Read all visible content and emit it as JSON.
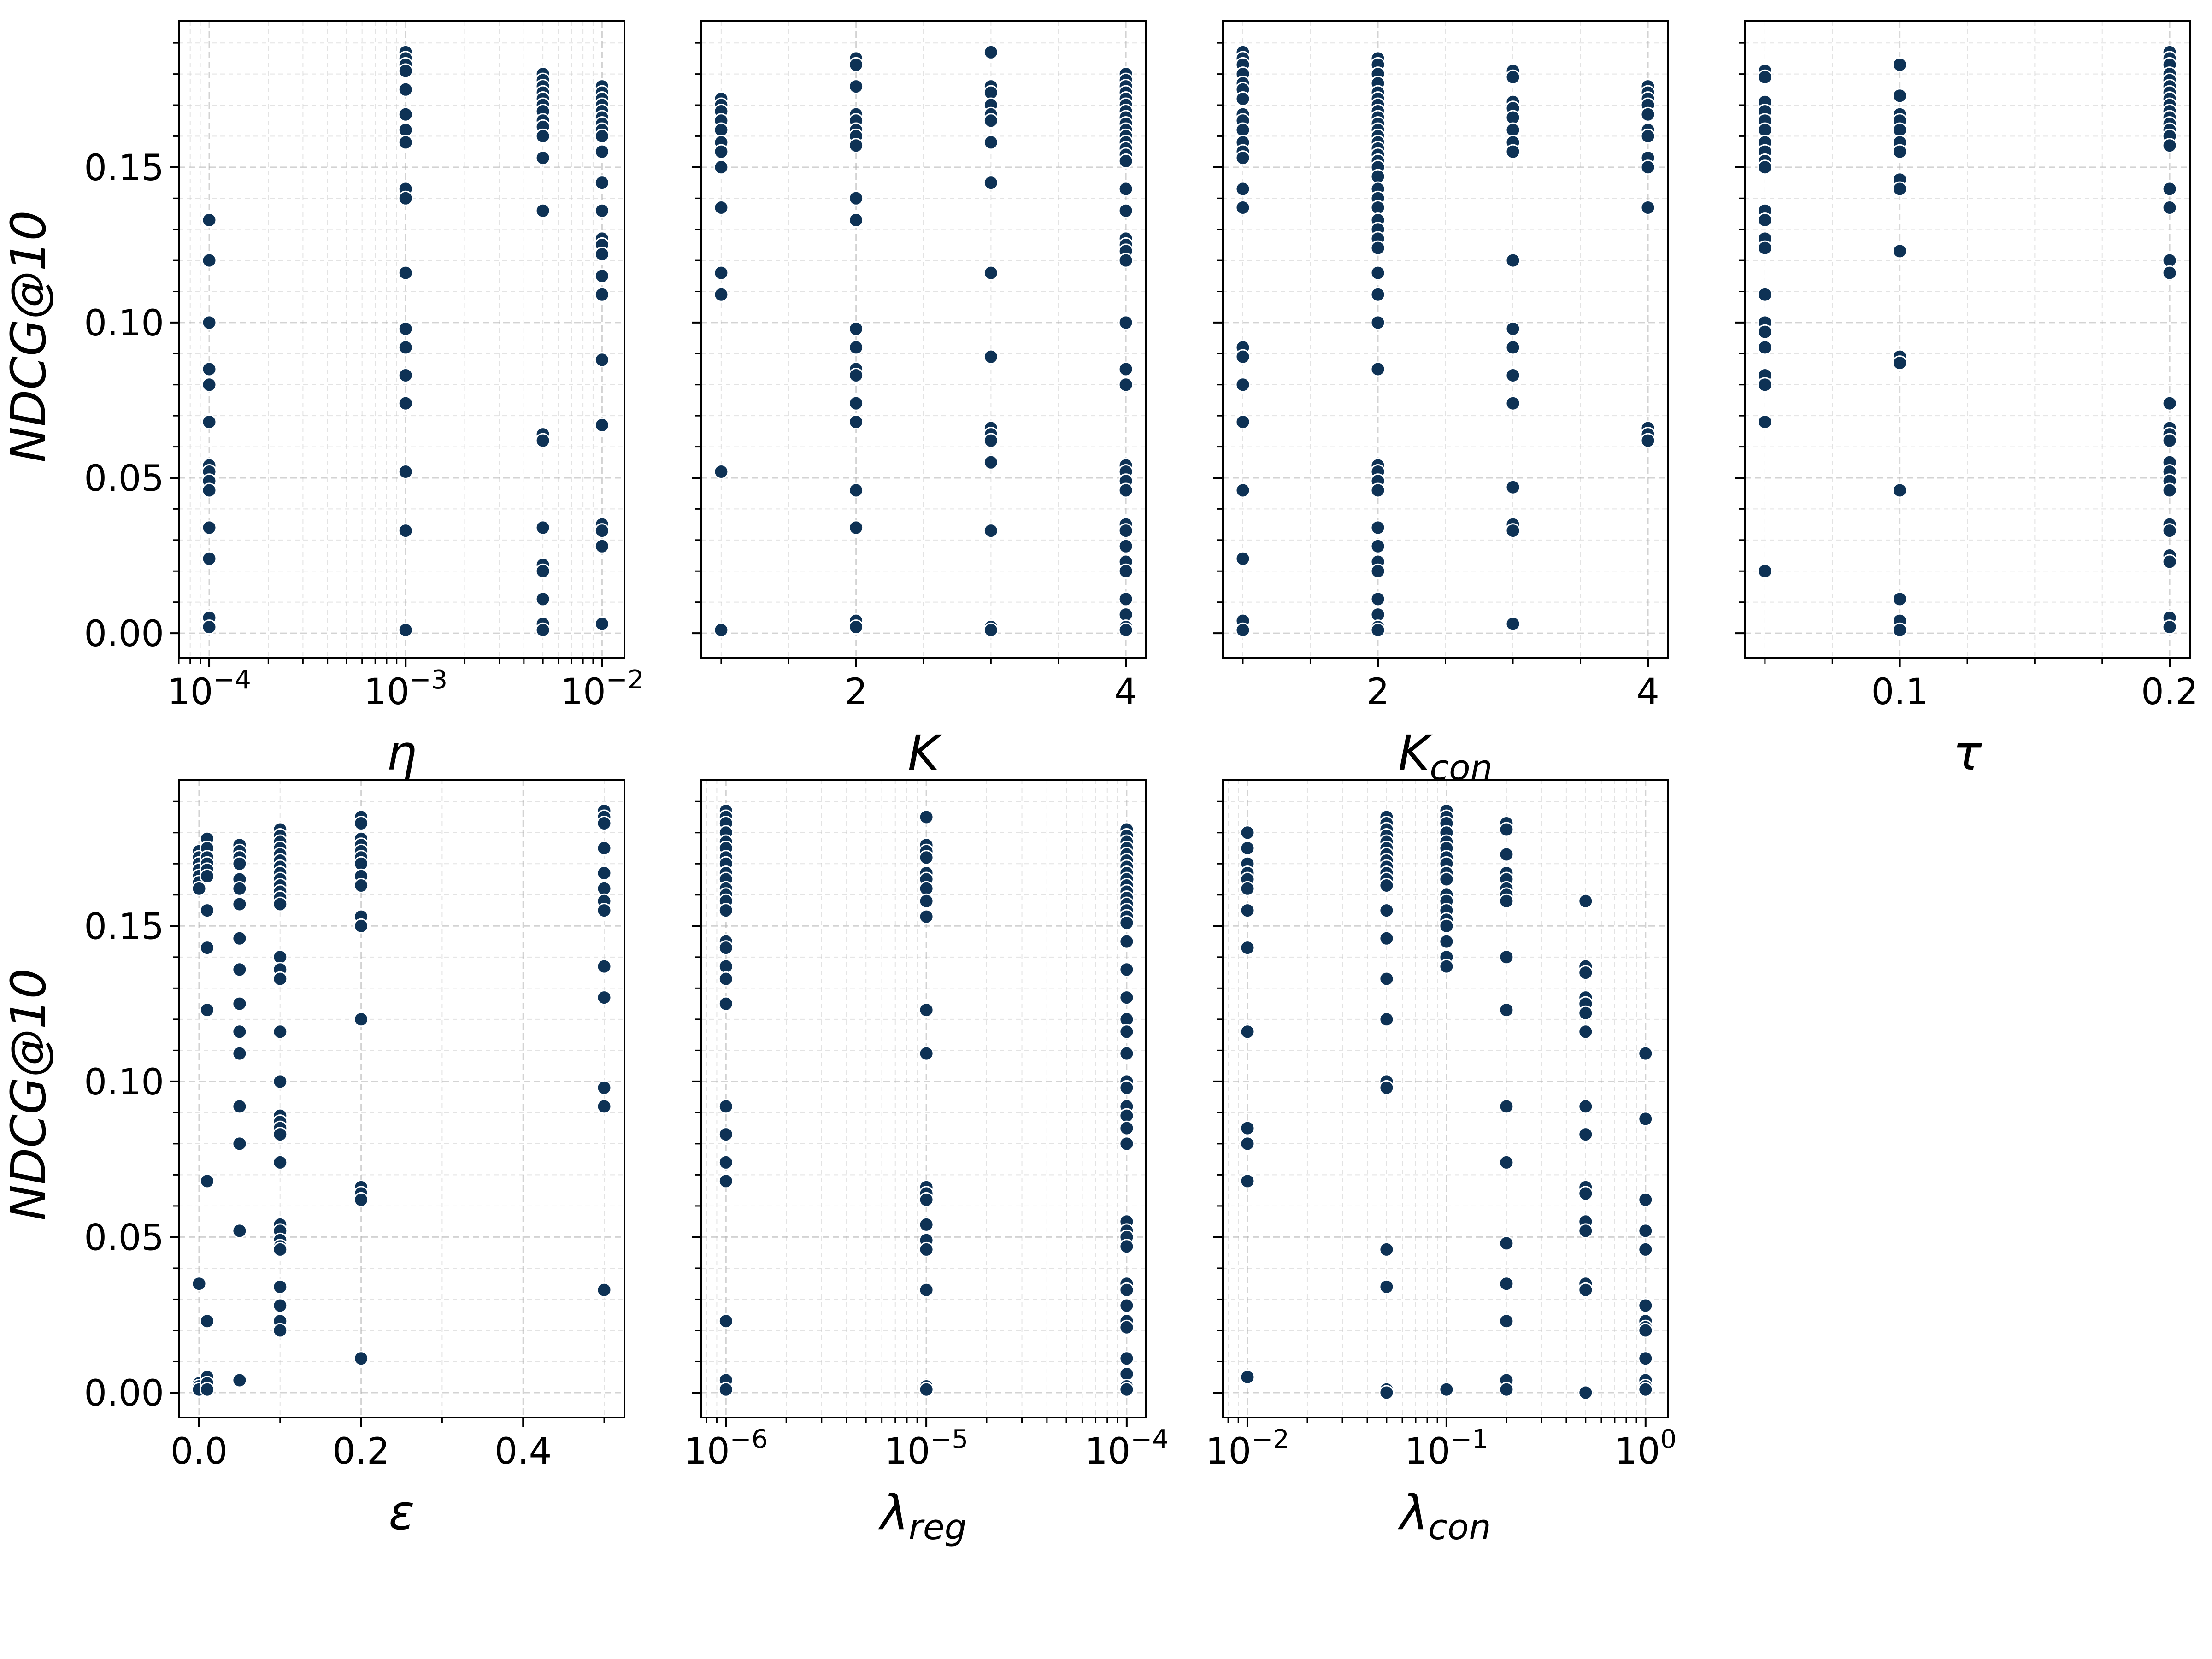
{
  "figure": {
    "ylabel": "NDCG@10",
    "point_color": "#0e3255",
    "point_edge_color": "#ffffff"
  },
  "chart_data": [
    {
      "type": "scatter",
      "id": "eta",
      "xlabel": "η",
      "xlabel_sub": "",
      "xscale": "log",
      "xlim": [
        7e-05,
        0.013
      ],
      "xticks": [
        0.0001,
        0.001,
        0.01
      ],
      "xtick_labels": [
        {
          "base": "10",
          "exp": "−4"
        },
        {
          "base": "10",
          "exp": "−3"
        },
        {
          "base": "10",
          "exp": "−2"
        }
      ],
      "ylim": [
        -0.008,
        0.197
      ],
      "yticks": [
        0.0,
        0.05,
        0.1,
        0.15
      ],
      "ytick_labels": [
        "0.00",
        "0.05",
        "0.10",
        "0.15"
      ],
      "points": [
        {
          "x": 0.0001,
          "y": [
            0.133,
            0.12,
            0.1,
            0.085,
            0.08,
            0.068,
            0.054,
            0.052,
            0.049,
            0.046,
            0.034,
            0.024,
            0.005,
            0.002
          ]
        },
        {
          "x": 0.001,
          "y": [
            0.187,
            0.185,
            0.183,
            0.181,
            0.175,
            0.167,
            0.162,
            0.158,
            0.143,
            0.14,
            0.116,
            0.098,
            0.092,
            0.083,
            0.074,
            0.052,
            0.033,
            0.001
          ]
        },
        {
          "x": 0.005,
          "y": [
            0.18,
            0.178,
            0.176,
            0.174,
            0.172,
            0.17,
            0.168,
            0.165,
            0.163,
            0.16,
            0.153,
            0.136,
            0.064,
            0.062,
            0.034,
            0.022,
            0.02,
            0.011,
            0.003,
            0.001
          ]
        },
        {
          "x": 0.01,
          "y": [
            0.176,
            0.174,
            0.172,
            0.17,
            0.168,
            0.166,
            0.164,
            0.162,
            0.16,
            0.155,
            0.145,
            0.136,
            0.127,
            0.125,
            0.122,
            0.115,
            0.109,
            0.088,
            0.067,
            0.035,
            0.033,
            0.028,
            0.003
          ]
        }
      ]
    },
    {
      "type": "scatter",
      "id": "K",
      "xlabel": "K",
      "xlabel_sub": "",
      "xscale": "linear",
      "xlim": [
        0.85,
        4.15
      ],
      "xticks": [
        2,
        4
      ],
      "xtick_labels": [
        "2",
        "4"
      ],
      "minor_ticks": [
        1.0,
        1.5,
        2.5,
        3.0,
        3.5
      ],
      "ylim": [
        -0.008,
        0.197
      ],
      "yticks": [
        0.0,
        0.05,
        0.1,
        0.15
      ],
      "points": [
        {
          "x": 1,
          "y": [
            0.172,
            0.17,
            0.168,
            0.165,
            0.162,
            0.158,
            0.155,
            0.15,
            0.137,
            0.116,
            0.109,
            0.052,
            0.001
          ]
        },
        {
          "x": 2,
          "y": [
            0.185,
            0.183,
            0.176,
            0.167,
            0.165,
            0.162,
            0.16,
            0.157,
            0.14,
            0.133,
            0.098,
            0.092,
            0.085,
            0.083,
            0.074,
            0.068,
            0.046,
            0.034,
            0.004,
            0.002
          ]
        },
        {
          "x": 3,
          "y": [
            0.187,
            0.176,
            0.174,
            0.17,
            0.167,
            0.165,
            0.158,
            0.145,
            0.116,
            0.089,
            0.066,
            0.064,
            0.062,
            0.055,
            0.033,
            0.002,
            0.001
          ]
        },
        {
          "x": 4,
          "y": [
            0.18,
            0.178,
            0.176,
            0.174,
            0.172,
            0.17,
            0.168,
            0.166,
            0.164,
            0.162,
            0.16,
            0.158,
            0.156,
            0.154,
            0.152,
            0.143,
            0.136,
            0.127,
            0.125,
            0.123,
            0.12,
            0.1,
            0.085,
            0.08,
            0.054,
            0.052,
            0.049,
            0.046,
            0.035,
            0.033,
            0.028,
            0.023,
            0.02,
            0.011,
            0.006,
            0.002,
            0.001
          ]
        }
      ]
    },
    {
      "type": "scatter",
      "id": "Kcon",
      "xlabel": "K",
      "xlabel_sub": "con",
      "xscale": "linear",
      "xlim": [
        0.85,
        4.15
      ],
      "xticks": [
        2,
        4
      ],
      "xtick_labels": [
        "2",
        "4"
      ],
      "minor_ticks": [
        1.0,
        1.5,
        2.5,
        3.0,
        3.5
      ],
      "ylim": [
        -0.008,
        0.197
      ],
      "yticks": [
        0.0,
        0.05,
        0.1,
        0.15
      ],
      "points": [
        {
          "x": 1,
          "y": [
            0.187,
            0.185,
            0.183,
            0.18,
            0.177,
            0.175,
            0.172,
            0.167,
            0.165,
            0.162,
            0.158,
            0.155,
            0.153,
            0.143,
            0.137,
            0.092,
            0.089,
            0.08,
            0.068,
            0.046,
            0.024,
            0.004,
            0.001
          ]
        },
        {
          "x": 2,
          "y": [
            0.185,
            0.183,
            0.18,
            0.177,
            0.174,
            0.172,
            0.17,
            0.168,
            0.166,
            0.164,
            0.162,
            0.16,
            0.158,
            0.156,
            0.154,
            0.152,
            0.15,
            0.147,
            0.143,
            0.14,
            0.137,
            0.133,
            0.13,
            0.127,
            0.124,
            0.116,
            0.109,
            0.1,
            0.085,
            0.054,
            0.052,
            0.049,
            0.046,
            0.034,
            0.028,
            0.023,
            0.02,
            0.011,
            0.006,
            0.002,
            0.001
          ]
        },
        {
          "x": 3,
          "y": [
            0.181,
            0.179,
            0.171,
            0.169,
            0.166,
            0.162,
            0.158,
            0.155,
            0.12,
            0.098,
            0.092,
            0.083,
            0.074,
            0.047,
            0.035,
            0.033,
            0.003
          ]
        },
        {
          "x": 4,
          "y": [
            0.176,
            0.174,
            0.172,
            0.17,
            0.167,
            0.162,
            0.16,
            0.153,
            0.15,
            0.137,
            0.066,
            0.064,
            0.062
          ]
        }
      ]
    },
    {
      "type": "scatter",
      "id": "tau",
      "xlabel": "τ",
      "xlabel_sub": "",
      "xscale": "linear",
      "xlim": [
        0.0425,
        0.2075
      ],
      "xticks": [
        0.1,
        0.2
      ],
      "xtick_labels": [
        "0.1",
        "0.2"
      ],
      "minor_ticks": [
        0.05,
        0.075,
        0.125,
        0.15,
        0.175
      ],
      "ylim": [
        -0.008,
        0.197
      ],
      "yticks": [
        0.0,
        0.05,
        0.1,
        0.15
      ],
      "points": [
        {
          "x": 0.05,
          "y": [
            0.181,
            0.179,
            0.171,
            0.168,
            0.165,
            0.162,
            0.158,
            0.155,
            0.152,
            0.15,
            0.136,
            0.133,
            0.127,
            0.124,
            0.109,
            0.1,
            0.097,
            0.092,
            0.083,
            0.08,
            0.068,
            0.02
          ]
        },
        {
          "x": 0.1,
          "y": [
            0.183,
            0.173,
            0.167,
            0.165,
            0.162,
            0.158,
            0.155,
            0.146,
            0.143,
            0.123,
            0.089,
            0.087,
            0.046,
            0.011,
            0.004,
            0.001
          ]
        },
        {
          "x": 0.2,
          "y": [
            0.187,
            0.185,
            0.183,
            0.18,
            0.178,
            0.176,
            0.174,
            0.172,
            0.17,
            0.168,
            0.166,
            0.164,
            0.162,
            0.16,
            0.157,
            0.143,
            0.137,
            0.12,
            0.116,
            0.074,
            0.066,
            0.064,
            0.062,
            0.055,
            0.052,
            0.049,
            0.046,
            0.035,
            0.033,
            0.025,
            0.023,
            0.005,
            0.002
          ]
        }
      ]
    },
    {
      "type": "scatter",
      "id": "epsilon",
      "xlabel": "ε",
      "xlabel_sub": "",
      "xscale": "linear",
      "xlim": [
        -0.025,
        0.525
      ],
      "xticks": [
        0.0,
        0.2,
        0.4
      ],
      "xtick_labels": [
        "0.0",
        "0.2",
        "0.4"
      ],
      "minor_ticks": [
        0.1,
        0.3,
        0.5
      ],
      "ylim": [
        -0.008,
        0.197
      ],
      "yticks": [
        0.0,
        0.05,
        0.1,
        0.15
      ],
      "ytick_labels": [
        "0.00",
        "0.05",
        "0.10",
        "0.15"
      ],
      "points": [
        {
          "x": 0.0,
          "y": [
            0.174,
            0.172,
            0.17,
            0.168,
            0.166,
            0.164,
            0.162,
            0.035,
            0.003,
            0.002,
            0.001
          ]
        },
        {
          "x": 0.01,
          "y": [
            0.178,
            0.175,
            0.172,
            0.17,
            0.168,
            0.166,
            0.155,
            0.143,
            0.123,
            0.068,
            0.023,
            0.005,
            0.003,
            0.001
          ]
        },
        {
          "x": 0.05,
          "y": [
            0.176,
            0.174,
            0.172,
            0.17,
            0.165,
            0.162,
            0.157,
            0.146,
            0.136,
            0.125,
            0.116,
            0.109,
            0.092,
            0.08,
            0.052,
            0.004
          ]
        },
        {
          "x": 0.1,
          "y": [
            0.181,
            0.179,
            0.177,
            0.175,
            0.173,
            0.171,
            0.169,
            0.167,
            0.165,
            0.163,
            0.161,
            0.159,
            0.157,
            0.14,
            0.136,
            0.133,
            0.116,
            0.1,
            0.089,
            0.087,
            0.085,
            0.083,
            0.074,
            0.054,
            0.052,
            0.049,
            0.047,
            0.046,
            0.034,
            0.028,
            0.023,
            0.02
          ]
        },
        {
          "x": 0.2,
          "y": [
            0.185,
            0.183,
            0.178,
            0.176,
            0.174,
            0.172,
            0.17,
            0.166,
            0.163,
            0.153,
            0.15,
            0.12,
            0.066,
            0.064,
            0.062,
            0.011
          ]
        },
        {
          "x": 0.5,
          "y": [
            0.187,
            0.185,
            0.183,
            0.175,
            0.167,
            0.162,
            0.158,
            0.155,
            0.137,
            0.127,
            0.098,
            0.092,
            0.033
          ]
        }
      ]
    },
    {
      "type": "scatter",
      "id": "lambda_reg",
      "xlabel": "λ",
      "xlabel_sub": "reg",
      "xscale": "log",
      "xlim": [
        7.5e-07,
        0.000125
      ],
      "xticks": [
        1e-06,
        1e-05,
        0.0001
      ],
      "xtick_labels": [
        {
          "base": "10",
          "exp": "−6"
        },
        {
          "base": "10",
          "exp": "−5"
        },
        {
          "base": "10",
          "exp": "−4"
        }
      ],
      "ylim": [
        -0.008,
        0.197
      ],
      "yticks": [
        0.0,
        0.05,
        0.1,
        0.15
      ],
      "points": [
        {
          "x": 1e-06,
          "y": [
            0.187,
            0.185,
            0.183,
            0.18,
            0.177,
            0.175,
            0.172,
            0.17,
            0.167,
            0.165,
            0.162,
            0.16,
            0.158,
            0.155,
            0.145,
            0.143,
            0.137,
            0.133,
            0.125,
            0.092,
            0.083,
            0.074,
            0.068,
            0.023,
            0.004,
            0.001
          ]
        },
        {
          "x": 1e-05,
          "y": [
            0.185,
            0.176,
            0.174,
            0.172,
            0.167,
            0.165,
            0.162,
            0.158,
            0.153,
            0.123,
            0.109,
            0.066,
            0.064,
            0.062,
            0.054,
            0.049,
            0.046,
            0.033,
            0.002,
            0.001
          ]
        },
        {
          "x": 0.0001,
          "y": [
            0.181,
            0.179,
            0.177,
            0.175,
            0.173,
            0.171,
            0.169,
            0.167,
            0.165,
            0.163,
            0.161,
            0.159,
            0.157,
            0.155,
            0.153,
            0.151,
            0.145,
            0.136,
            0.127,
            0.12,
            0.116,
            0.109,
            0.1,
            0.098,
            0.092,
            0.089,
            0.085,
            0.08,
            0.055,
            0.052,
            0.05,
            0.047,
            0.035,
            0.033,
            0.028,
            0.023,
            0.021,
            0.011,
            0.006,
            0.002,
            0.001
          ]
        }
      ]
    },
    {
      "type": "scatter",
      "id": "lambda_con",
      "xlabel": "λ",
      "xlabel_sub": "con",
      "xscale": "log",
      "xlim": [
        0.0075,
        1.3
      ],
      "xticks": [
        0.01,
        0.1,
        1.0
      ],
      "xtick_labels": [
        {
          "base": "10",
          "exp": "−2"
        },
        {
          "base": "10",
          "exp": "−1"
        },
        {
          "base": "10",
          "exp": "0"
        }
      ],
      "ylim": [
        -0.008,
        0.197
      ],
      "yticks": [
        0.0,
        0.05,
        0.1,
        0.15
      ],
      "points": [
        {
          "x": 0.01,
          "y": [
            0.18,
            0.175,
            0.17,
            0.167,
            0.165,
            0.162,
            0.155,
            0.143,
            0.116,
            0.085,
            0.08,
            0.068,
            0.005
          ]
        },
        {
          "x": 0.05,
          "y": [
            0.185,
            0.183,
            0.181,
            0.179,
            0.177,
            0.175,
            0.173,
            0.171,
            0.169,
            0.167,
            0.165,
            0.163,
            0.155,
            0.146,
            0.133,
            0.12,
            0.1,
            0.098,
            0.046,
            0.034,
            0.001,
            0.0
          ]
        },
        {
          "x": 0.1,
          "y": [
            0.187,
            0.185,
            0.183,
            0.18,
            0.177,
            0.175,
            0.172,
            0.17,
            0.167,
            0.165,
            0.16,
            0.158,
            0.155,
            0.152,
            0.15,
            0.145,
            0.14,
            0.137,
            0.001
          ]
        },
        {
          "x": 0.2,
          "y": [
            0.183,
            0.181,
            0.173,
            0.167,
            0.165,
            0.162,
            0.16,
            0.158,
            0.14,
            0.123,
            0.092,
            0.074,
            0.048,
            0.035,
            0.023,
            0.004,
            0.001
          ]
        },
        {
          "x": 0.5,
          "y": [
            0.158,
            0.137,
            0.135,
            0.127,
            0.125,
            0.122,
            0.116,
            0.092,
            0.083,
            0.066,
            0.064,
            0.055,
            0.052,
            0.035,
            0.033,
            0.0
          ]
        },
        {
          "x": 1.0,
          "y": [
            0.109,
            0.088,
            0.062,
            0.052,
            0.046,
            0.028,
            0.023,
            0.021,
            0.02,
            0.011,
            0.004,
            0.002,
            0.001
          ]
        }
      ]
    }
  ]
}
